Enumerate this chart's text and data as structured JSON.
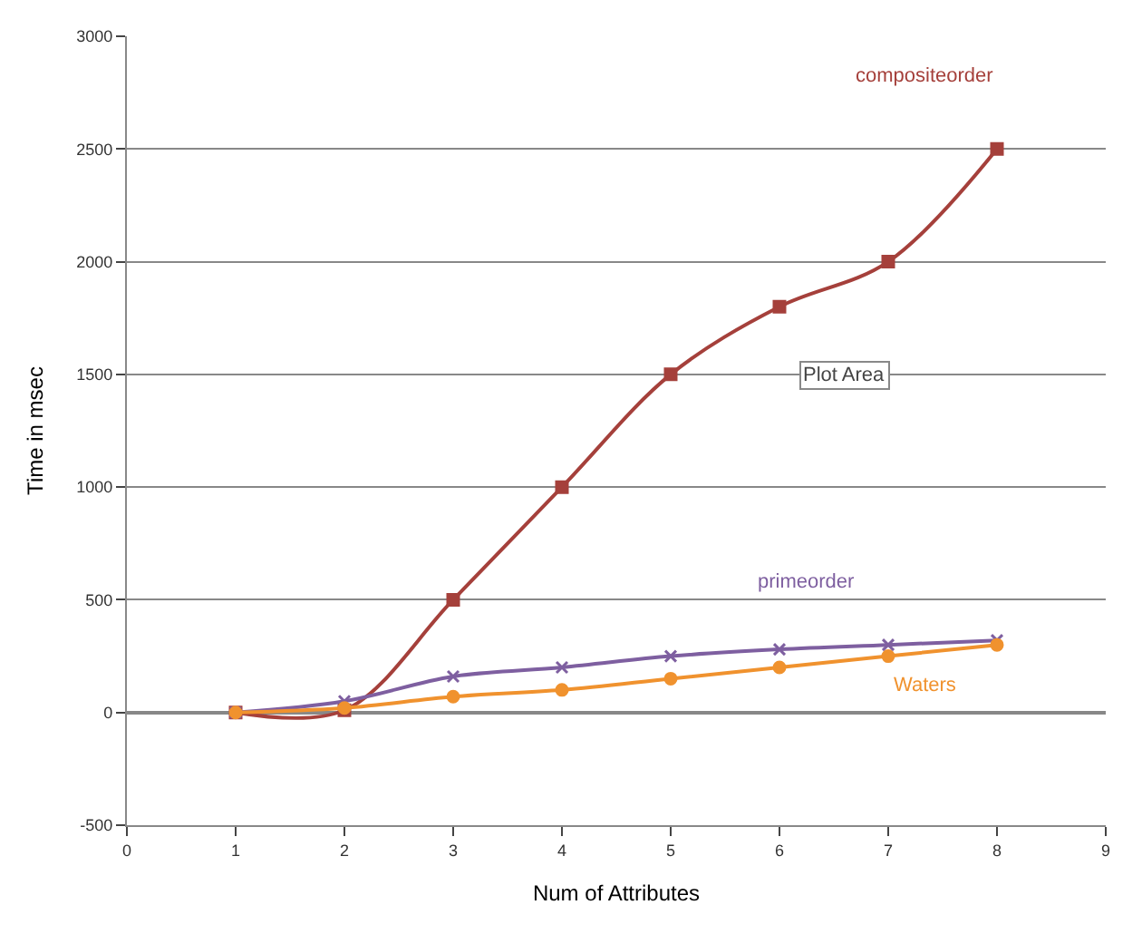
{
  "chart_data": {
    "type": "line",
    "xlabel": "Num of Attributes",
    "ylabel": "Time in msec",
    "x": [
      1,
      2,
      3,
      4,
      5,
      6,
      7,
      8
    ],
    "series": [
      {
        "name": "compositeorder",
        "color": "#a5403b",
        "marker": "square",
        "values": [
          0,
          10,
          500,
          1000,
          1500,
          1800,
          2000,
          2500
        ]
      },
      {
        "name": "primeorder",
        "color": "#7e5fa0",
        "marker": "cross",
        "values": [
          0,
          50,
          160,
          200,
          250,
          280,
          300,
          320
        ]
      },
      {
        "name": "Waters",
        "color": "#f0922e",
        "marker": "circle",
        "values": [
          0,
          20,
          70,
          100,
          150,
          200,
          250,
          300
        ]
      }
    ],
    "xlim": [
      0,
      9
    ],
    "xticks": [
      0,
      1,
      2,
      3,
      4,
      5,
      6,
      7,
      8,
      9
    ],
    "ylim": [
      -500,
      3000
    ],
    "yticks": [
      -500,
      0,
      500,
      1000,
      1500,
      2000,
      2500,
      3000
    ],
    "grid": "y",
    "legend": false,
    "annotations": [
      "Plot Area"
    ]
  }
}
